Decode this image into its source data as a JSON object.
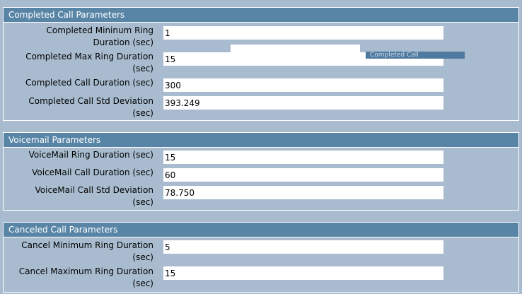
{
  "completed": {
    "title": "Completed Call Parameters",
    "fields": [
      {
        "label_line1": "Completed Mininum Ring",
        "label_line2": "Duration (sec)",
        "value": "1"
      },
      {
        "label_line1": "Completed Max Ring Duration",
        "label_line2": "(sec)",
        "value": "15"
      },
      {
        "label_line1": "Completed Call Duration (sec)",
        "label_line2": "",
        "value": "300"
      },
      {
        "label_line1": "Completed Call Std Deviation",
        "label_line2": "(sec)",
        "value": "393.249"
      }
    ]
  },
  "voicemail": {
    "title": "Voicemail Parameters",
    "fields": [
      {
        "label_line1": "VoiceMail Ring Duration (sec)",
        "label_line2": "",
        "value": "15"
      },
      {
        "label_line1": "VoiceMail Call Duration (sec)",
        "label_line2": "",
        "value": "60"
      },
      {
        "label_line1": "VoiceMail Call Std Deviation",
        "label_line2": "(sec)",
        "value": "78.750"
      }
    ]
  },
  "canceled": {
    "title": "Canceled Call Parameters",
    "fields": [
      {
        "label_line1": "Cancel Minimum Ring Duration",
        "label_line2": "(sec)",
        "value": "5"
      },
      {
        "label_line1": "Cancel Maximum Ring Duration",
        "label_line2": "(sec)",
        "value": "15"
      }
    ]
  },
  "overlay": {
    "tooltip_text": "Completed Call"
  },
  "colors": {
    "background": "#a9bccf",
    "header": "#5885a6",
    "field": "#ffffff"
  }
}
